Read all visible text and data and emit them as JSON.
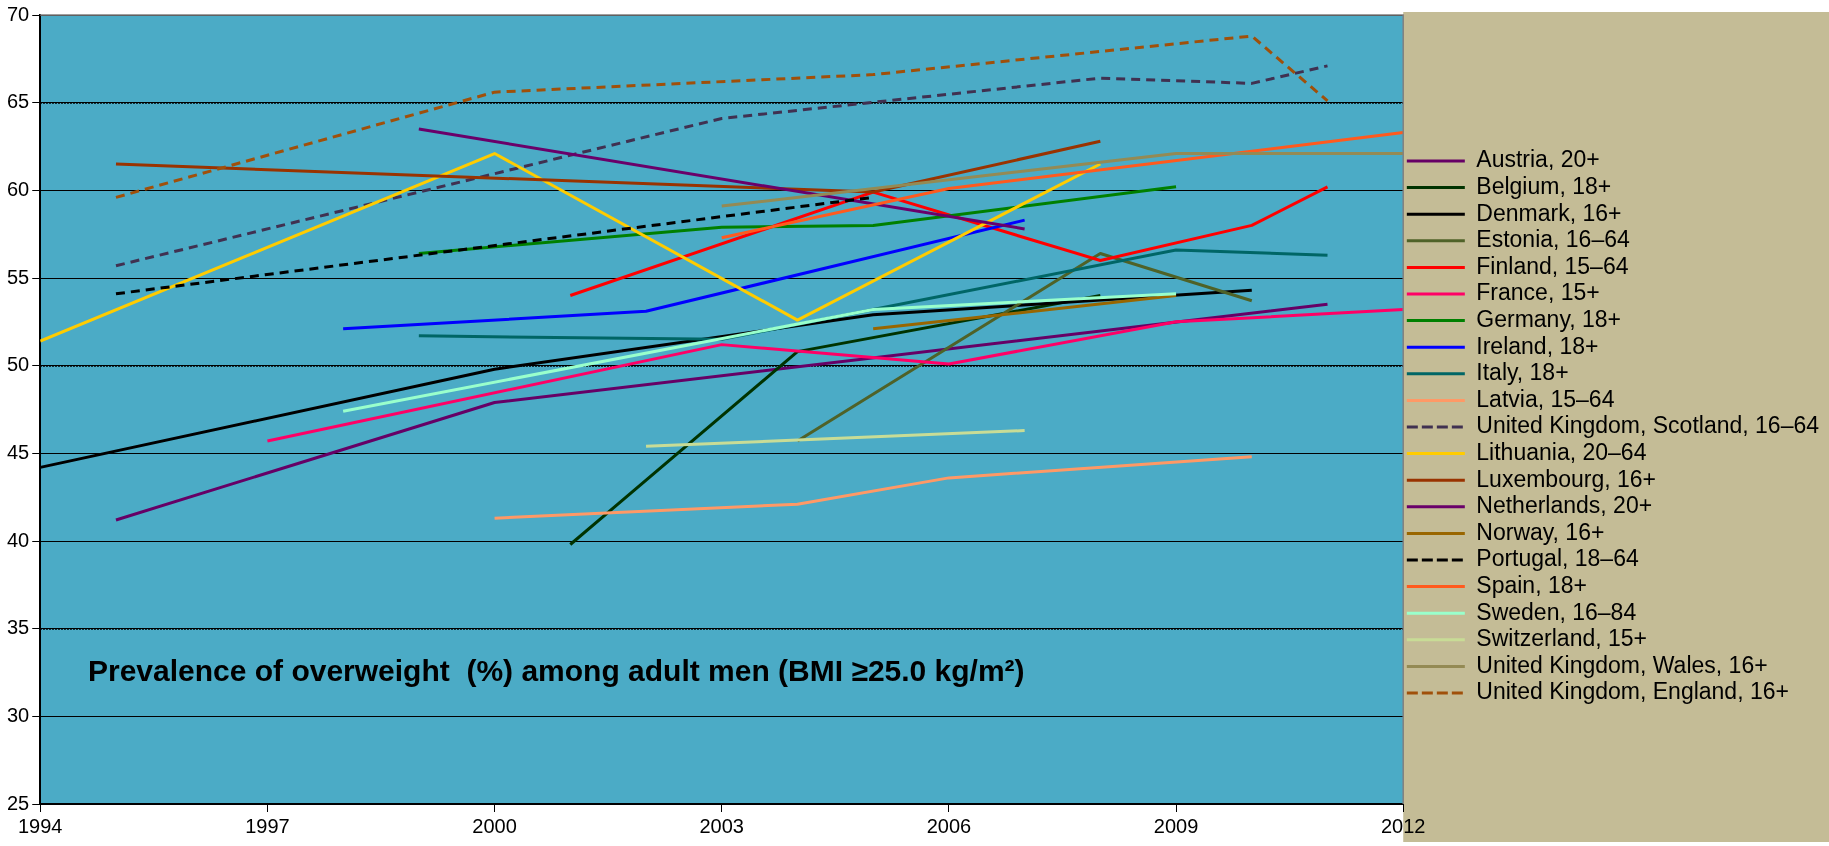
{
  "chart_data": {
    "type": "line",
    "title": "Prevalence of overweight  (%) among adult men (BMI ≥25.0 kg/m²)",
    "xlim": [
      1994,
      2012
    ],
    "xticks": [
      1994,
      1997,
      2000,
      2003,
      2006,
      2009,
      2012
    ],
    "ylim": [
      25,
      70
    ],
    "yticks": [
      25,
      30,
      35,
      40,
      45,
      50,
      55,
      60,
      65,
      70
    ],
    "grid": "y",
    "legend": "right",
    "marker": "none",
    "line_style": "solid",
    "series": [
      {
        "name": "Austria, 20+",
        "color": "#660066",
        "x": [
          1995,
          2000,
          2011
        ],
        "values": [
          41.2,
          47.9,
          53.5
        ]
      },
      {
        "name": "Belgium, 18+",
        "color": "#003300",
        "x": [
          2001,
          2004,
          2008
        ],
        "values": [
          39.8,
          50.8,
          54.0
        ]
      },
      {
        "name": "Denmark, 16+",
        "color": "#000000",
        "x": [
          1994,
          2000,
          2005,
          2010
        ],
        "values": [
          44.2,
          49.8,
          52.9,
          54.3
        ]
      },
      {
        "name": "Estonia, 16–64",
        "color": "#4f6228",
        "x": [
          2004,
          2008,
          2010
        ],
        "values": [
          45.7,
          56.4,
          53.7
        ]
      },
      {
        "name": "Finland, 15–64",
        "color": "#ff0000",
        "x": [
          2001,
          2005,
          2008,
          2010,
          2011
        ],
        "values": [
          54.0,
          59.9,
          56.0,
          58.0,
          60.2
        ]
      },
      {
        "name": "France, 15+",
        "color": "#ff0066",
        "x": [
          1997,
          2003,
          2006,
          2009,
          2012
        ],
        "values": [
          45.7,
          51.2,
          50.1,
          52.5,
          53.2
        ]
      },
      {
        "name": "Germany, 18+",
        "color": "#008000",
        "x": [
          1999,
          2003,
          2005,
          2009
        ],
        "values": [
          56.4,
          57.9,
          58.0,
          60.2
        ]
      },
      {
        "name": "Ireland, 18+",
        "color": "#0000ff",
        "x": [
          1998,
          2002,
          2007
        ],
        "values": [
          52.1,
          53.1,
          58.3
        ]
      },
      {
        "name": "Italy, 18+",
        "color": "#006666",
        "x": [
          1999,
          2003,
          2005,
          2009,
          2011
        ],
        "values": [
          51.7,
          51.5,
          53.2,
          56.6,
          56.3
        ]
      },
      {
        "name": "Latvia, 15–64",
        "color": "#ff9966",
        "x": [
          2000,
          2004,
          2006,
          2010
        ],
        "values": [
          41.3,
          42.1,
          43.6,
          44.8
        ]
      },
      {
        "name": "United Kingdom, Scotland, 16–64",
        "color": "#403151",
        "line_style": "dashed",
        "x": [
          1995,
          2003,
          2008,
          2010,
          2011
        ],
        "values": [
          55.7,
          64.1,
          66.4,
          66.1,
          67.1
        ]
      },
      {
        "name": "Lithuania, 20–64",
        "color": "#ffcc00",
        "x": [
          1994,
          2000,
          2004,
          2008
        ],
        "values": [
          51.4,
          62.1,
          52.6,
          61.5
        ]
      },
      {
        "name": "Luxembourg, 16+",
        "color": "#993300",
        "x": [
          1995,
          2005,
          2008
        ],
        "values": [
          61.5,
          59.9,
          62.8
        ]
      },
      {
        "name": "Netherlands, 20+",
        "color": "#6a006a",
        "x": [
          1999,
          2007
        ],
        "values": [
          63.5,
          57.8
        ]
      },
      {
        "name": "Norway, 16+",
        "color": "#996600",
        "x": [
          2005,
          2009
        ],
        "values": [
          52.1,
          54.0
        ]
      },
      {
        "name": "Portugal, 18–64",
        "color": "#000000",
        "line_style": "dashed",
        "x": [
          1995,
          2005
        ],
        "values": [
          54.1,
          59.6
        ]
      },
      {
        "name": "Spain, 18+",
        "color": "#ff5a1e",
        "x": [
          2003,
          2006,
          2012
        ],
        "values": [
          57.3,
          60.1,
          63.3
        ]
      },
      {
        "name": "Sweden, 16–84",
        "color": "#99ffcc",
        "x": [
          1998,
          2005,
          2009
        ],
        "values": [
          47.4,
          53.2,
          54.1
        ]
      },
      {
        "name": "Switzerland, 15+",
        "color": "#c8dc96",
        "x": [
          2002,
          2007
        ],
        "values": [
          45.4,
          46.3
        ]
      },
      {
        "name": "United Kingdom, Wales, 16+",
        "color": "#948a54",
        "x": [
          2003,
          2008,
          2009,
          2012
        ],
        "values": [
          59.1,
          61.6,
          62.1,
          62.1
        ]
      },
      {
        "name": "United Kingdom, England, 16+",
        "color": "#a0500a",
        "line_style": "dashed",
        "x": [
          1995,
          2000,
          2005,
          2010,
          2011
        ],
        "values": [
          59.6,
          65.6,
          66.6,
          68.8,
          65.1
        ]
      }
    ]
  }
}
